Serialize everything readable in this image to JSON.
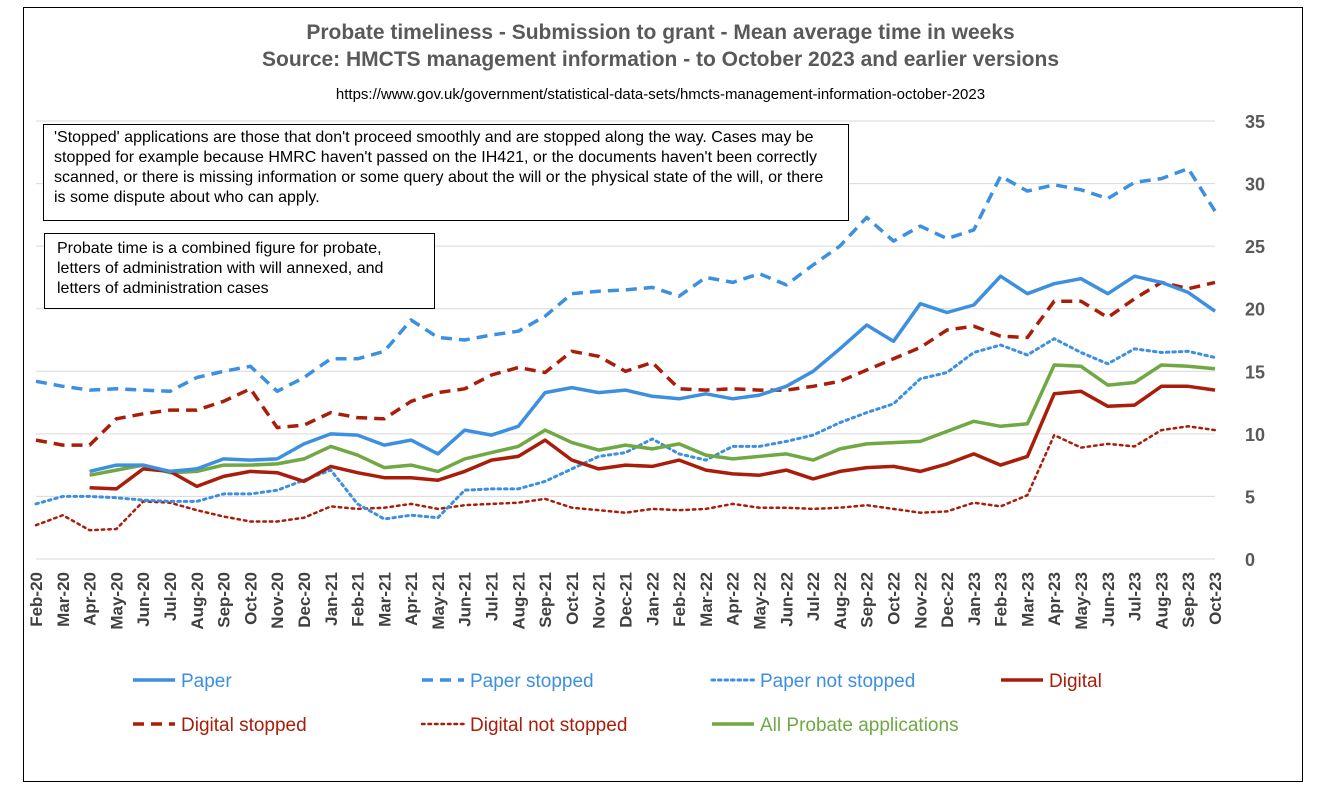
{
  "title_line1": "Probate timeliness - Submission to grant - Mean average time in weeks",
  "title_line2": "Source: HMCTS management information - to October 2023 and earlier versions",
  "source_url": "https://www.gov.uk/government/statistical-data-sets/hmcts-management-information-october-2023",
  "notes": [
    "'Stopped' applications are those that don't proceed smoothly and are stopped along the way. Cases may be stopped for example because HMRC haven't passed on the IH421, or the documents haven't been correctly scanned, or there is missing information or some query about the will or the physical state of the will, or there is some dispute about who can apply.",
    "Probate time is a combined figure for probate, letters of administration with will annexed, and letters of administration cases"
  ],
  "chart_data": {
    "type": "line",
    "ylim": [
      0,
      35
    ],
    "yticks": [
      0,
      5,
      10,
      15,
      20,
      25,
      30,
      35
    ],
    "grid": true,
    "y_axis_side": "right",
    "legend_position": "bottom",
    "categories": [
      "Feb-20",
      "Mar-20",
      "Apr-20",
      "May-20",
      "Jun-20",
      "Jul-20",
      "Aug-20",
      "Sep-20",
      "Oct-20",
      "Nov-20",
      "Dec-20",
      "Jan-21",
      "Feb-21",
      "Mar-21",
      "Apr-21",
      "May-21",
      "Jun-21",
      "Jul-21",
      "Aug-21",
      "Sep-21",
      "Oct-21",
      "Nov-21",
      "Dec-21",
      "Jan-22",
      "Feb-22",
      "Mar-22",
      "Apr-22",
      "May-22",
      "Jun-22",
      "Jul-22",
      "Aug-22",
      "Sep-22",
      "Oct-22",
      "Nov-22",
      "Dec-22",
      "Jan-23",
      "Feb-23",
      "Mar-23",
      "Apr-23",
      "May-23",
      "Jun-23",
      "Jul-23",
      "Aug-23",
      "Sep-23",
      "Oct-23"
    ],
    "series": [
      {
        "name": "Paper",
        "color": "#3d8fe0",
        "dash": "solid",
        "width": 3.5,
        "values": [
          null,
          null,
          7.0,
          7.5,
          7.5,
          7.0,
          7.2,
          8.0,
          7.9,
          8.0,
          9.2,
          10.0,
          9.9,
          9.1,
          9.5,
          8.4,
          10.3,
          9.9,
          10.6,
          13.3,
          13.7,
          13.3,
          13.5,
          13.0,
          12.8,
          13.2,
          12.8,
          13.1,
          13.8,
          15.0,
          16.8,
          18.7,
          17.4,
          20.4,
          19.7,
          20.3,
          22.6,
          21.2,
          22.0,
          22.4,
          21.2,
          22.6,
          22.1,
          21.3,
          19.8
        ]
      },
      {
        "name": "Paper stopped",
        "color": "#3d8fe0",
        "dash": "dashed",
        "width": 3.5,
        "values": [
          14.2,
          13.8,
          13.5,
          13.6,
          13.5,
          13.4,
          14.5,
          15.0,
          15.4,
          13.4,
          14.5,
          16.0,
          16.0,
          16.6,
          19.1,
          17.7,
          17.5,
          17.9,
          18.2,
          19.4,
          21.2,
          21.4,
          21.5,
          21.7,
          21.0,
          22.5,
          22.1,
          22.8,
          21.9,
          23.5,
          25.0,
          27.3,
          25.4,
          26.6,
          25.6,
          26.3,
          30.6,
          29.4,
          29.9,
          29.5,
          28.8,
          30.1,
          30.4,
          31.2,
          27.8
        ]
      },
      {
        "name": "Paper not stopped",
        "color": "#3d8fe0",
        "dash": "dotted",
        "width": 3,
        "values": [
          4.4,
          5.0,
          5.0,
          4.9,
          4.7,
          4.6,
          4.6,
          5.2,
          5.2,
          5.5,
          6.3,
          7.1,
          4.4,
          3.2,
          3.5,
          3.3,
          5.5,
          5.6,
          5.6,
          6.2,
          7.2,
          8.2,
          8.5,
          9.6,
          8.4,
          7.9,
          9.0,
          9.0,
          9.4,
          9.9,
          10.9,
          11.7,
          12.4,
          14.4,
          14.9,
          16.5,
          17.1,
          16.3,
          17.6,
          16.5,
          15.6,
          16.8,
          16.5,
          16.6,
          16.1
        ]
      },
      {
        "name": "Digital",
        "color": "#a81e0a",
        "dash": "solid",
        "width": 3.5,
        "values": [
          null,
          null,
          5.7,
          5.6,
          7.2,
          7.0,
          5.8,
          6.6,
          7.0,
          6.9,
          6.2,
          7.4,
          6.9,
          6.5,
          6.5,
          6.3,
          7.0,
          7.9,
          8.2,
          9.5,
          7.9,
          7.2,
          7.5,
          7.4,
          7.9,
          7.1,
          6.8,
          6.7,
          7.1,
          6.4,
          7.0,
          7.3,
          7.4,
          7.0,
          7.6,
          8.4,
          7.5,
          8.2,
          13.2,
          13.4,
          12.2,
          12.3,
          13.8,
          13.8,
          13.5
        ]
      },
      {
        "name": "Digital stopped",
        "color": "#a81e0a",
        "dash": "dashed",
        "width": 3.5,
        "values": [
          9.5,
          9.1,
          9.1,
          11.2,
          11.6,
          11.9,
          11.9,
          12.6,
          13.6,
          10.5,
          10.7,
          11.7,
          11.3,
          11.2,
          12.6,
          13.3,
          13.6,
          14.7,
          15.3,
          14.9,
          16.6,
          16.2,
          15.0,
          15.7,
          13.6,
          13.5,
          13.6,
          13.5,
          13.5,
          13.8,
          14.2,
          15.1,
          16.0,
          16.9,
          18.3,
          18.6,
          17.8,
          17.7,
          20.6,
          20.6,
          19.3,
          20.8,
          22.1,
          21.6,
          22.1
        ]
      },
      {
        "name": "Digital not stopped",
        "color": "#a81e0a",
        "dash": "dotted",
        "width": 2.5,
        "values": [
          2.7,
          3.5,
          2.3,
          2.4,
          4.6,
          4.5,
          3.9,
          3.4,
          3.0,
          3.0,
          3.3,
          4.2,
          4.0,
          4.1,
          4.4,
          4.0,
          4.3,
          4.4,
          4.5,
          4.8,
          4.1,
          3.9,
          3.7,
          4.0,
          3.9,
          4.0,
          4.4,
          4.1,
          4.1,
          4.0,
          4.1,
          4.3,
          4.0,
          3.7,
          3.8,
          4.5,
          4.2,
          5.1,
          9.9,
          8.9,
          9.2,
          9.0,
          10.3,
          10.6,
          10.3
        ]
      },
      {
        "name": "All Probate applications",
        "color": "#70a844",
        "dash": "solid",
        "width": 3.5,
        "values": [
          null,
          null,
          6.7,
          7.1,
          7.5,
          6.9,
          7.0,
          7.5,
          7.5,
          7.6,
          8.0,
          9.0,
          8.3,
          7.3,
          7.5,
          7.0,
          8.0,
          8.5,
          9.0,
          10.3,
          9.3,
          8.7,
          9.1,
          8.8,
          9.2,
          8.3,
          8.0,
          8.2,
          8.4,
          7.9,
          8.8,
          9.2,
          9.3,
          9.4,
          10.2,
          11.0,
          10.6,
          10.8,
          15.5,
          15.4,
          13.9,
          14.1,
          15.5,
          15.4,
          15.2
        ]
      }
    ]
  }
}
